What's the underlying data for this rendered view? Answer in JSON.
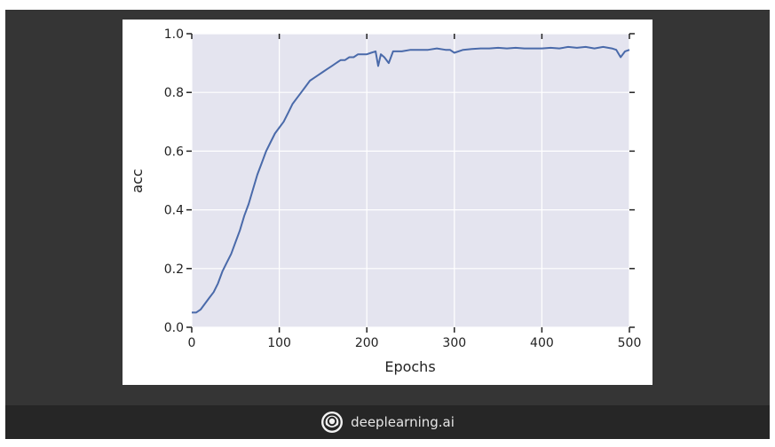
{
  "brand": {
    "name": "deeplearning.ai",
    "icon": "deeplearning-logo-icon"
  },
  "colors": {
    "slide_background": "#353535",
    "footer_background": "#262626",
    "plot_background": "#e4e4ef",
    "line": "#4a6aaa",
    "grid": "#ffffff"
  },
  "chart_data": {
    "type": "line",
    "title": "",
    "xlabel": "Epochs",
    "ylabel": "acc",
    "xlim": [
      0,
      500
    ],
    "ylim": [
      0.0,
      1.0
    ],
    "xticks": [
      "0",
      "100",
      "200",
      "300",
      "400",
      "500"
    ],
    "yticks": [
      "0.0",
      "0.2",
      "0.4",
      "0.6",
      "0.8",
      "1.0"
    ],
    "grid": true,
    "series": [
      {
        "x": [
          0,
          5,
          10,
          15,
          20,
          25,
          30,
          35,
          40,
          45,
          50,
          55,
          60,
          65,
          70,
          75,
          80,
          85,
          90,
          95,
          100,
          105,
          110,
          115,
          120,
          125,
          130,
          135,
          140,
          145,
          150,
          155,
          160,
          165,
          170,
          175,
          180,
          185,
          190,
          195,
          200,
          205,
          210,
          213,
          216,
          220,
          225,
          230,
          240,
          250,
          260,
          270,
          280,
          290,
          295,
          300,
          310,
          320,
          330,
          340,
          350,
          360,
          370,
          380,
          390,
          400,
          410,
          420,
          430,
          440,
          450,
          460,
          470,
          480,
          485,
          490,
          495,
          500
        ],
        "y": [
          0.05,
          0.05,
          0.06,
          0.08,
          0.1,
          0.12,
          0.15,
          0.19,
          0.22,
          0.25,
          0.29,
          0.33,
          0.38,
          0.42,
          0.47,
          0.52,
          0.56,
          0.6,
          0.63,
          0.66,
          0.68,
          0.7,
          0.73,
          0.76,
          0.78,
          0.8,
          0.82,
          0.84,
          0.85,
          0.86,
          0.87,
          0.88,
          0.89,
          0.9,
          0.91,
          0.91,
          0.92,
          0.92,
          0.93,
          0.93,
          0.93,
          0.935,
          0.94,
          0.89,
          0.93,
          0.92,
          0.9,
          0.94,
          0.94,
          0.945,
          0.945,
          0.945,
          0.95,
          0.945,
          0.945,
          0.935,
          0.945,
          0.948,
          0.95,
          0.95,
          0.952,
          0.95,
          0.952,
          0.95,
          0.95,
          0.95,
          0.952,
          0.95,
          0.955,
          0.952,
          0.955,
          0.95,
          0.955,
          0.95,
          0.945,
          0.92,
          0.94,
          0.945
        ]
      }
    ]
  }
}
